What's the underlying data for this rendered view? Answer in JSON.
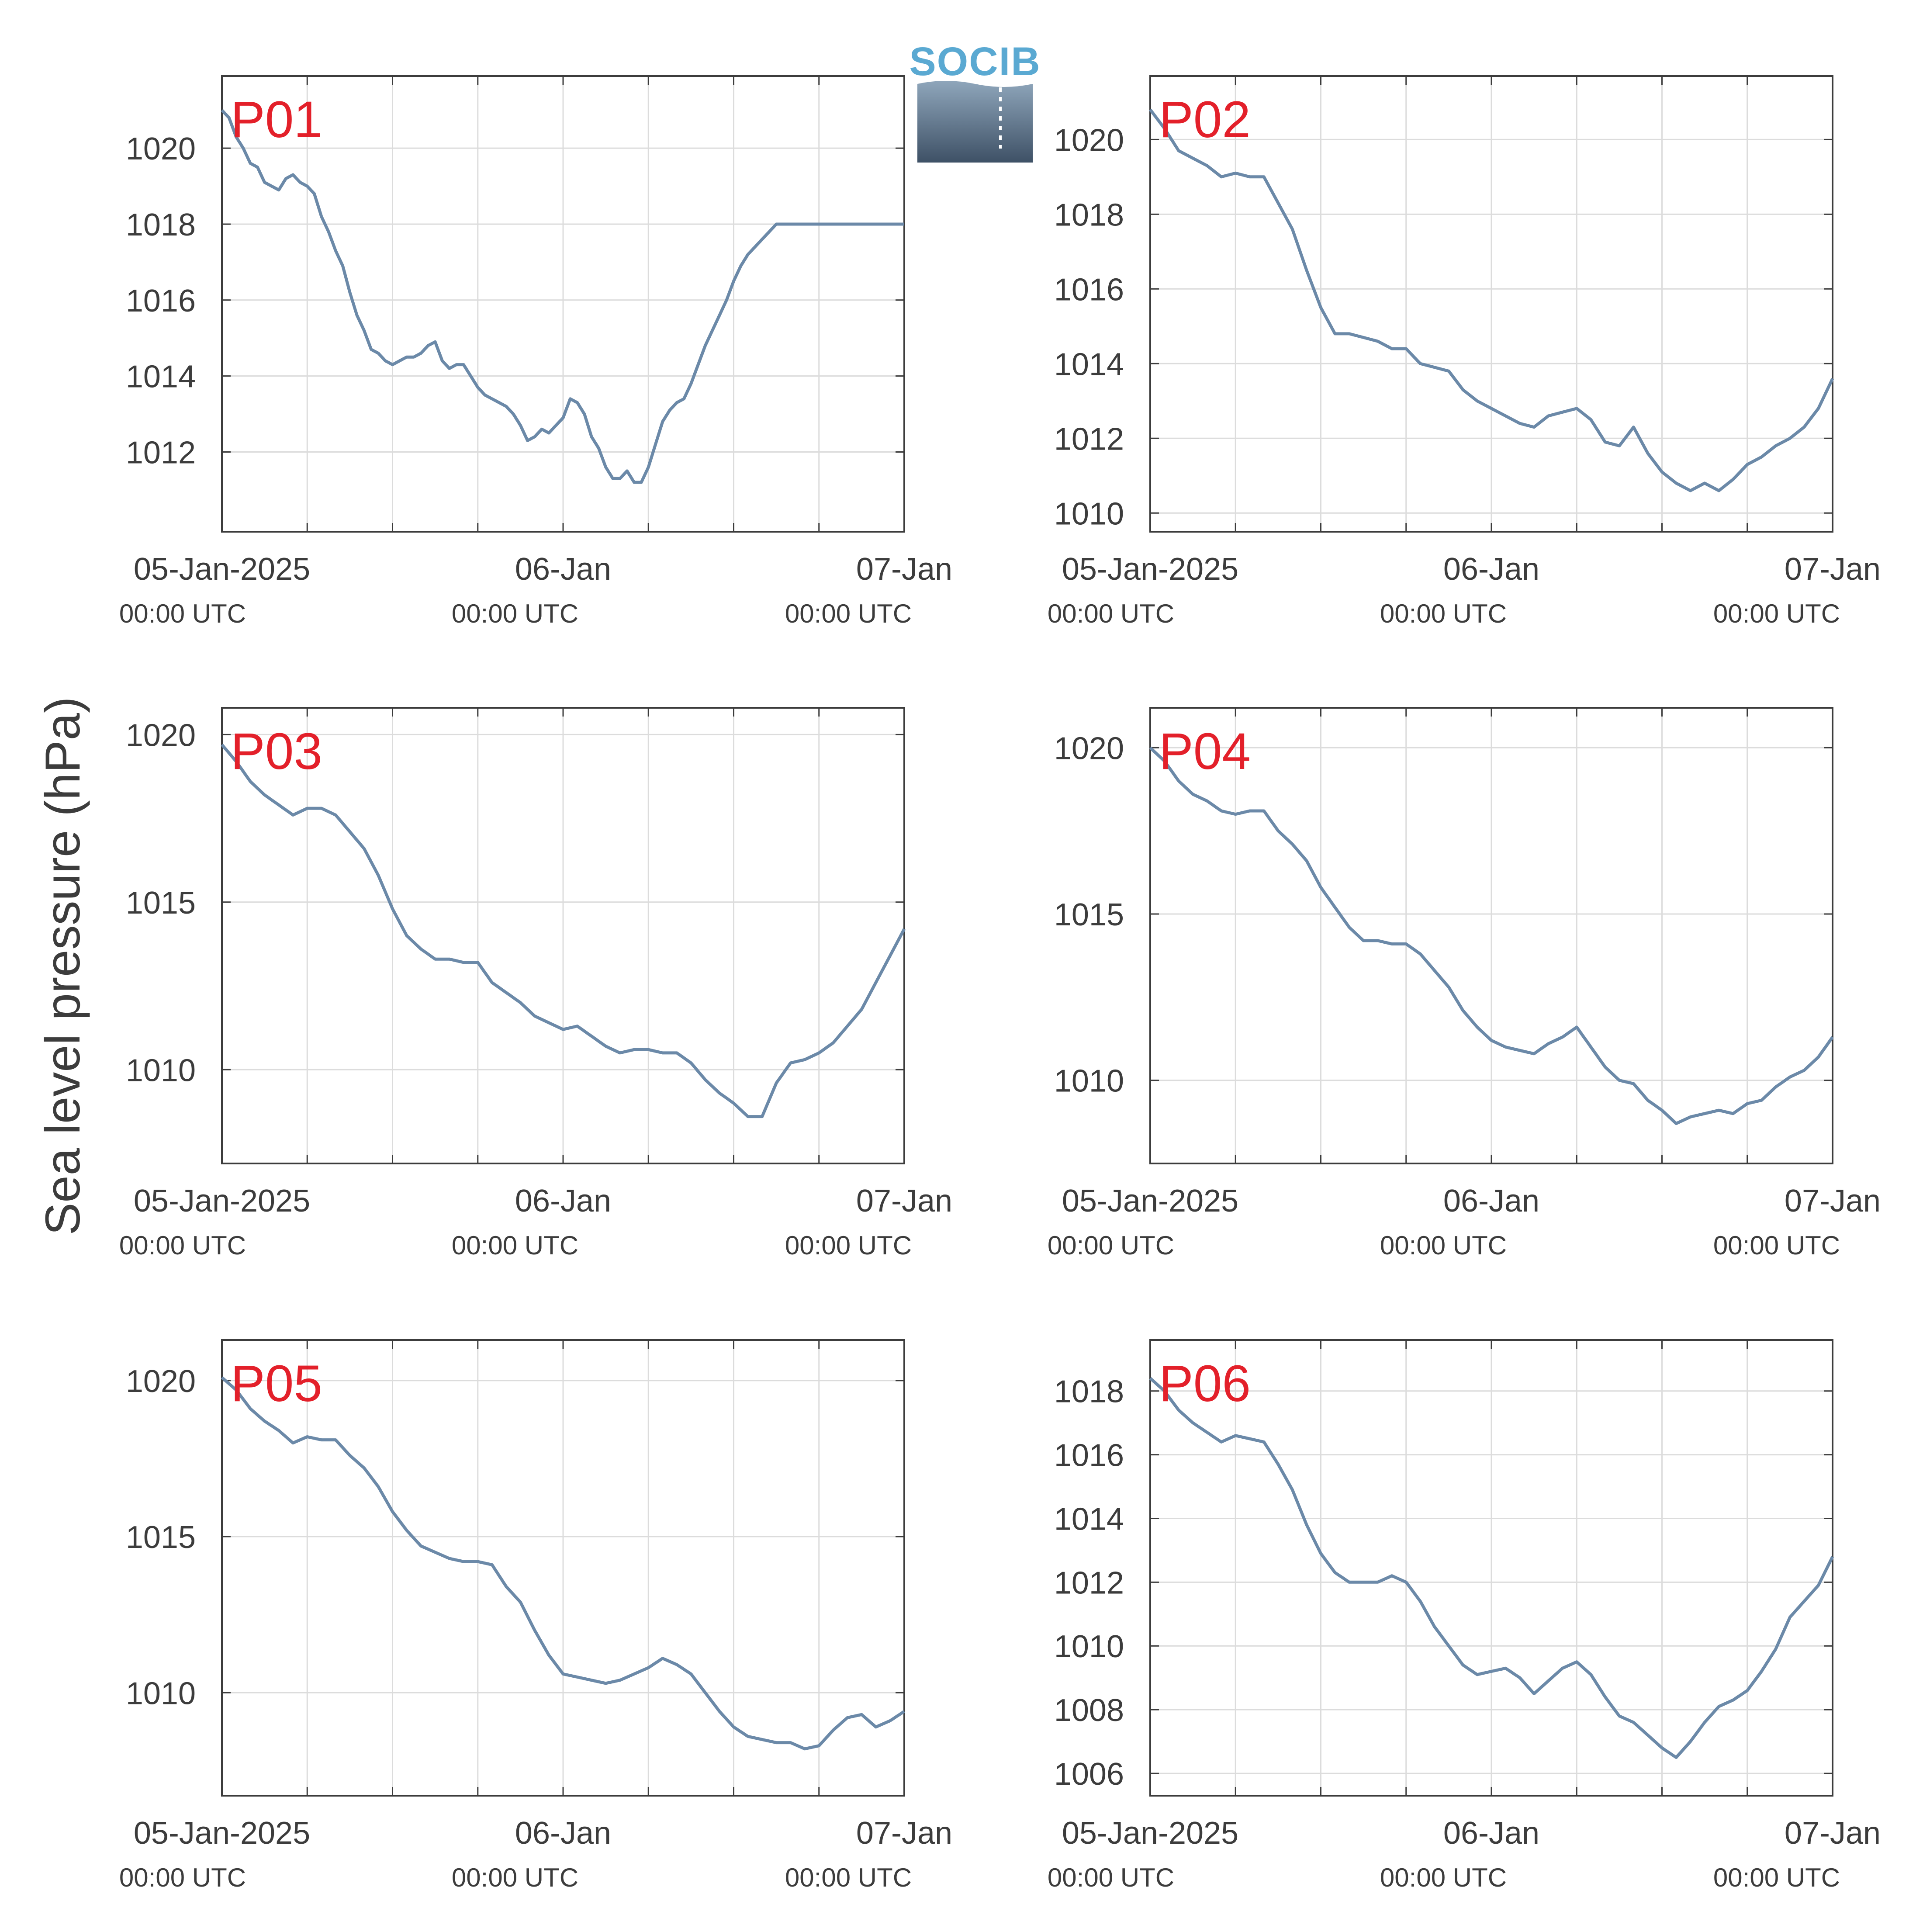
{
  "figure": {
    "ylabel": "Sea level pressure (hPa)",
    "logo_text": "SOCIB",
    "line_color": "#6b89a8",
    "label_color": "#e3202a",
    "axis_color": "#3c3c3c",
    "grid_color": "#dcdcdc"
  },
  "chart_data": [
    {
      "type": "line",
      "title": "P01",
      "x_tick_labels": [
        "05-Jan-2025",
        "06-Jan",
        "07-Jan"
      ],
      "x_tick_sublabels": [
        "00:00 UTC",
        "00:00 UTC",
        "00:00 UTC"
      ],
      "xlim": [
        0,
        48
      ],
      "ylim": [
        1009.9,
        1021.9
      ],
      "yticks": [
        1012,
        1014,
        1016,
        1018,
        1020
      ],
      "grid": true,
      "series": [
        {
          "x": [
            0,
            0.5,
            1,
            1.5,
            2,
            2.5,
            3,
            3.5,
            4,
            4.5,
            5,
            5.5,
            6,
            6.5,
            7,
            7.5,
            8,
            8.5,
            9,
            9.5,
            10,
            10.5,
            11,
            11.5,
            12,
            12.5,
            13,
            13.5,
            14,
            14.5,
            15,
            15.5,
            16,
            16.5,
            17,
            17.5,
            18,
            18.5,
            19,
            19.5,
            20,
            20.5,
            21,
            21.5,
            22,
            22.5,
            23,
            23.5,
            24,
            24.5,
            25,
            25.5,
            26,
            26.5,
            27,
            27.5,
            28,
            28.5,
            29,
            29.5,
            30,
            30.5,
            31,
            31.5,
            32,
            32.5,
            33,
            33.5,
            34,
            34.5,
            35,
            35.5,
            36,
            36.5,
            37,
            37.5,
            38,
            38.5,
            39,
            39.5,
            40,
            40.5,
            41,
            41.5,
            42,
            42.5,
            43,
            43.5,
            44,
            44.5,
            45,
            45.5,
            46,
            46.5,
            47,
            47.5,
            48
          ],
          "y": [
            1021.0,
            1020.8,
            1020.3,
            1020.0,
            1019.6,
            1019.5,
            1019.1,
            1019.0,
            1018.9,
            1019.2,
            1019.3,
            1019.1,
            1019.0,
            1018.8,
            1018.2,
            1017.8,
            1017.3,
            1016.9,
            1016.2,
            1015.6,
            1015.2,
            1014.7,
            1014.6,
            1014.4,
            1014.3,
            1014.4,
            1014.5,
            1014.5,
            1014.6,
            1014.8,
            1014.9,
            1014.4,
            1014.2,
            1014.3,
            1014.3,
            1014.0,
            1013.7,
            1013.5,
            1013.4,
            1013.3,
            1013.2,
            1013.0,
            1012.7,
            1012.3,
            1012.4,
            1012.6,
            1012.5,
            1012.7,
            1012.9,
            1013.4,
            1013.3,
            1013.0,
            1012.4,
            1012.1,
            1011.6,
            1011.3,
            1011.3,
            1011.5,
            1011.2,
            1011.2,
            1011.6,
            1012.2,
            1012.8,
            1013.1,
            1013.3,
            1013.4,
            1013.8,
            1014.3,
            1014.8,
            1015.2,
            1015.6,
            1016.0,
            1016.5,
            1016.9,
            1017.2,
            1017.4,
            1017.6,
            1017.8,
            1018.0,
            1018.0,
            1018.0,
            1018.0,
            1018.0,
            1018.0,
            1018.0,
            1018.0,
            1018.0,
            1018.0,
            1018.0,
            1018.0,
            1018.0,
            1018.0,
            1018.0,
            1018.0,
            1018.0,
            1018.0,
            1018.0
          ]
        }
      ]
    },
    {
      "type": "line",
      "title": "P02",
      "x_tick_labels": [
        "05-Jan-2025",
        "06-Jan",
        "07-Jan"
      ],
      "x_tick_sublabels": [
        "00:00 UTC",
        "00:00 UTC",
        "00:00 UTC"
      ],
      "xlim": [
        0,
        48
      ],
      "ylim": [
        1009.5,
        1021.7
      ],
      "yticks": [
        1010,
        1012,
        1014,
        1016,
        1018,
        1020
      ],
      "grid": true,
      "series": [
        {
          "x": [
            0,
            1,
            2,
            3,
            4,
            5,
            6,
            7,
            8,
            9,
            10,
            11,
            12,
            13,
            14,
            15,
            16,
            17,
            18,
            19,
            20,
            21,
            22,
            23,
            24,
            25,
            26,
            27,
            28,
            29,
            30,
            31,
            32,
            33,
            34,
            35,
            36,
            37,
            38,
            39,
            40,
            41,
            42,
            43,
            44,
            45,
            46,
            47,
            48
          ],
          "y": [
            1020.8,
            1020.3,
            1019.7,
            1019.5,
            1019.3,
            1019.0,
            1019.1,
            1019.0,
            1019.0,
            1018.3,
            1017.6,
            1016.5,
            1015.5,
            1014.8,
            1014.8,
            1014.7,
            1014.6,
            1014.4,
            1014.4,
            1014.0,
            1013.9,
            1013.8,
            1013.3,
            1013.0,
            1012.8,
            1012.6,
            1012.4,
            1012.3,
            1012.6,
            1012.7,
            1012.8,
            1012.5,
            1011.9,
            1011.8,
            1012.3,
            1011.6,
            1011.1,
            1010.8,
            1010.6,
            1010.8,
            1010.6,
            1010.9,
            1011.3,
            1011.5,
            1011.8,
            1012.0,
            1012.3,
            1012.8,
            1013.6
          ]
        }
      ]
    },
    {
      "type": "line",
      "title": "P03",
      "x_tick_labels": [
        "05-Jan-2025",
        "06-Jan",
        "07-Jan"
      ],
      "x_tick_sublabels": [
        "00:00 UTC",
        "00:00 UTC",
        "00:00 UTC"
      ],
      "xlim": [
        0,
        48
      ],
      "ylim": [
        1007.2,
        1020.8
      ],
      "yticks": [
        1010,
        1015,
        1020
      ],
      "grid": true,
      "series": [
        {
          "x": [
            0,
            1,
            2,
            3,
            4,
            5,
            6,
            7,
            8,
            9,
            10,
            11,
            12,
            13,
            14,
            15,
            16,
            17,
            18,
            19,
            20,
            21,
            22,
            23,
            24,
            25,
            26,
            27,
            28,
            29,
            30,
            31,
            32,
            33,
            34,
            35,
            36,
            37,
            38,
            39,
            40,
            41,
            42,
            43,
            44,
            45,
            46,
            47,
            48
          ],
          "y": [
            1019.7,
            1019.2,
            1018.6,
            1018.2,
            1017.9,
            1017.6,
            1017.8,
            1017.8,
            1017.6,
            1017.1,
            1016.6,
            1015.8,
            1014.8,
            1014.0,
            1013.6,
            1013.3,
            1013.3,
            1013.2,
            1013.2,
            1012.6,
            1012.3,
            1012.0,
            1011.6,
            1011.4,
            1011.2,
            1011.3,
            1011.0,
            1010.7,
            1010.5,
            1010.6,
            1010.6,
            1010.5,
            1010.5,
            1010.2,
            1009.7,
            1009.3,
            1009.0,
            1008.6,
            1008.6,
            1009.6,
            1010.2,
            1010.3,
            1010.5,
            1010.8,
            1011.3,
            1011.8,
            1012.6,
            1013.4,
            1014.2
          ]
        }
      ]
    },
    {
      "type": "line",
      "title": "P04",
      "x_tick_labels": [
        "05-Jan-2025",
        "06-Jan",
        "07-Jan"
      ],
      "x_tick_sublabels": [
        "00:00 UTC",
        "00:00 UTC",
        "00:00 UTC"
      ],
      "xlim": [
        0,
        48
      ],
      "ylim": [
        1007.5,
        1021.2
      ],
      "yticks": [
        1010,
        1015,
        1020
      ],
      "grid": true,
      "series": [
        {
          "x": [
            0,
            1,
            2,
            3,
            4,
            5,
            6,
            7,
            8,
            9,
            10,
            11,
            12,
            13,
            14,
            15,
            16,
            17,
            18,
            19,
            20,
            21,
            22,
            23,
            24,
            25,
            26,
            27,
            28,
            29,
            30,
            31,
            32,
            33,
            34,
            35,
            36,
            37,
            38,
            39,
            40,
            41,
            42,
            43,
            44,
            45,
            46,
            47,
            48
          ],
          "y": [
            1020.0,
            1019.6,
            1019.0,
            1018.6,
            1018.4,
            1018.1,
            1018.0,
            1018.1,
            1018.1,
            1017.5,
            1017.1,
            1016.6,
            1015.8,
            1015.2,
            1014.6,
            1014.2,
            1014.2,
            1014.1,
            1014.1,
            1013.8,
            1013.3,
            1012.8,
            1012.1,
            1011.6,
            1011.2,
            1011.0,
            1010.9,
            1010.8,
            1011.1,
            1011.3,
            1011.6,
            1011.0,
            1010.4,
            1010.0,
            1009.9,
            1009.4,
            1009.1,
            1008.7,
            1008.9,
            1009.0,
            1009.1,
            1009.0,
            1009.3,
            1009.4,
            1009.8,
            1010.1,
            1010.3,
            1010.7,
            1011.3
          ]
        }
      ]
    },
    {
      "type": "line",
      "title": "P05",
      "x_tick_labels": [
        "05-Jan-2025",
        "06-Jan",
        "07-Jan"
      ],
      "x_tick_sublabels": [
        "00:00 UTC",
        "00:00 UTC",
        "00:00 UTC"
      ],
      "xlim": [
        0,
        48
      ],
      "ylim": [
        1006.7,
        1021.3
      ],
      "yticks": [
        1010,
        1015,
        1020
      ],
      "grid": true,
      "series": [
        {
          "x": [
            0,
            1,
            2,
            3,
            4,
            5,
            6,
            7,
            8,
            9,
            10,
            11,
            12,
            13,
            14,
            15,
            16,
            17,
            18,
            19,
            20,
            21,
            22,
            23,
            24,
            25,
            26,
            27,
            28,
            29,
            30,
            31,
            32,
            33,
            34,
            35,
            36,
            37,
            38,
            39,
            40,
            41,
            42,
            43,
            44,
            45,
            46,
            47,
            48
          ],
          "y": [
            1020.1,
            1019.7,
            1019.1,
            1018.7,
            1018.4,
            1018.0,
            1018.2,
            1018.1,
            1018.1,
            1017.6,
            1017.2,
            1016.6,
            1015.8,
            1015.2,
            1014.7,
            1014.5,
            1014.3,
            1014.2,
            1014.2,
            1014.1,
            1013.4,
            1012.9,
            1012.0,
            1011.2,
            1010.6,
            1010.5,
            1010.4,
            1010.3,
            1010.4,
            1010.6,
            1010.8,
            1011.1,
            1010.9,
            1010.6,
            1010.0,
            1009.4,
            1008.9,
            1008.6,
            1008.5,
            1008.4,
            1008.4,
            1008.2,
            1008.3,
            1008.8,
            1009.2,
            1009.3,
            1008.9,
            1009.1,
            1009.4
          ]
        }
      ]
    },
    {
      "type": "line",
      "title": "P06",
      "x_tick_labels": [
        "05-Jan-2025",
        "06-Jan",
        "07-Jan"
      ],
      "x_tick_sublabels": [
        "00:00 UTC",
        "00:00 UTC",
        "00:00 UTC"
      ],
      "xlim": [
        0,
        48
      ],
      "ylim": [
        1005.3,
        1019.6
      ],
      "yticks": [
        1006,
        1008,
        1010,
        1012,
        1014,
        1016,
        1018
      ],
      "grid": true,
      "series": [
        {
          "x": [
            0,
            1,
            2,
            3,
            4,
            5,
            6,
            7,
            8,
            9,
            10,
            11,
            12,
            13,
            14,
            15,
            16,
            17,
            18,
            19,
            20,
            21,
            22,
            23,
            24,
            25,
            26,
            27,
            28,
            29,
            30,
            31,
            32,
            33,
            34,
            35,
            36,
            37,
            38,
            39,
            40,
            41,
            42,
            43,
            44,
            45,
            46,
            47,
            48
          ],
          "y": [
            1018.4,
            1018.0,
            1017.4,
            1017.0,
            1016.7,
            1016.4,
            1016.6,
            1016.5,
            1016.4,
            1015.7,
            1014.9,
            1013.8,
            1012.9,
            1012.3,
            1012.0,
            1012.0,
            1012.0,
            1012.2,
            1012.0,
            1011.4,
            1010.6,
            1010.0,
            1009.4,
            1009.1,
            1009.2,
            1009.3,
            1009.0,
            1008.5,
            1008.9,
            1009.3,
            1009.5,
            1009.1,
            1008.4,
            1007.8,
            1007.6,
            1007.2,
            1006.8,
            1006.5,
            1007.0,
            1007.6,
            1008.1,
            1008.3,
            1008.6,
            1009.2,
            1009.9,
            1010.9,
            1011.4,
            1011.9,
            1012.8
          ]
        }
      ]
    }
  ]
}
